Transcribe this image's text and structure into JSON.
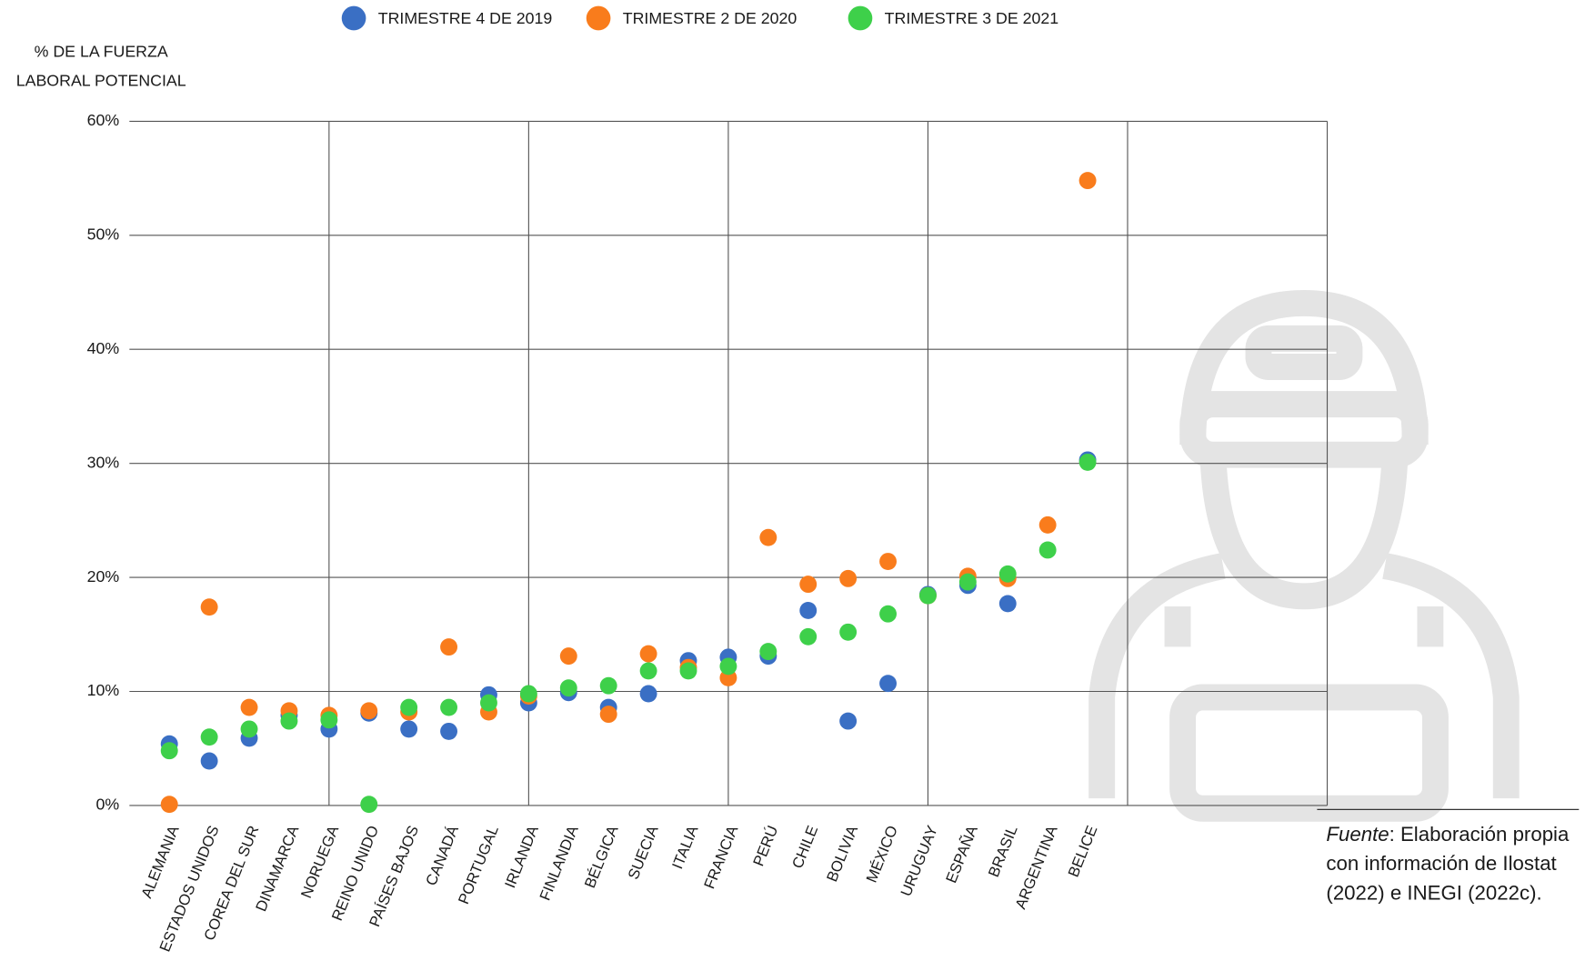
{
  "chart_data": {
    "type": "scatter",
    "y_axis_label": [
      "% DE LA FUERZA",
      "LABORAL POTENCIAL"
    ],
    "categories": [
      "ALEMANIA",
      "ESTADOS UNIDOS",
      "COREA DEL SUR",
      "DINAMARCA",
      "NORUEGA",
      "REINO UNIDO",
      "PAÍSES BAJOS",
      "CANADÁ",
      "PORTUGAL",
      "IRLANDA",
      "FINLANDIA",
      "BÉLGICA",
      "SUECIA",
      "ITALIA",
      "FRANCIA",
      "PERÚ",
      "CHILE",
      "BOLIVIA",
      "MÉXICO",
      "URUGUAY",
      "ESPAÑA",
      "BRASIL",
      "ARGENTINA",
      "BELICE"
    ],
    "highlight_category_index": 18,
    "highlight_color": "#ff0000",
    "series": [
      {
        "name": "TRIMESTRE 4 DE 2019",
        "color": "#3a6fc4",
        "values": [
          5.4,
          3.9,
          5.9,
          7.9,
          6.7,
          8.1,
          6.7,
          6.5,
          9.7,
          9.0,
          9.9,
          8.6,
          9.8,
          12.7,
          13.0,
          13.1,
          17.1,
          7.4,
          10.7,
          18.5,
          19.3,
          17.7,
          null,
          30.3
        ]
      },
      {
        "name": "TRIMESTRE 2 DE 2020",
        "color": "#f97c1c",
        "values": [
          0.1,
          17.4,
          8.6,
          8.3,
          7.9,
          8.3,
          8.2,
          13.9,
          8.2,
          9.6,
          13.1,
          8.0,
          13.3,
          12.1,
          11.2,
          23.5,
          19.4,
          19.9,
          21.4,
          18.4,
          20.1,
          19.9,
          24.6,
          54.8
        ]
      },
      {
        "name": "TRIMESTRE 3 DE 2021",
        "color": "#3ed04a",
        "values": [
          4.8,
          6.0,
          6.7,
          7.4,
          7.5,
          0.1,
          8.6,
          8.6,
          9.0,
          9.8,
          10.3,
          10.5,
          11.8,
          11.8,
          12.2,
          13.5,
          14.8,
          15.2,
          16.8,
          18.4,
          19.6,
          20.3,
          22.4,
          30.1
        ]
      }
    ],
    "ylim": [
      0,
      60
    ],
    "yticks": [
      {
        "value": 0,
        "label": "0%"
      },
      {
        "value": 10,
        "label": "10%"
      },
      {
        "value": 20,
        "label": "20%"
      },
      {
        "value": 30,
        "label": "30%"
      },
      {
        "value": 40,
        "label": "40%"
      },
      {
        "value": 50,
        "label": "50%"
      },
      {
        "value": 60,
        "label": "60%"
      }
    ],
    "grid": true,
    "source_label": "Fuente",
    "source_text": ": Elaboración propia con información de Ilostat (2022) e INEGI (2022c)."
  }
}
